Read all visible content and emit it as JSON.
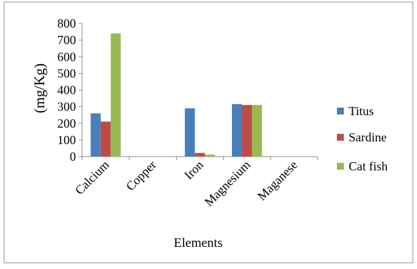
{
  "chart_data": {
    "type": "bar",
    "categories": [
      "Calcium",
      "Copper",
      "Iron",
      "Magnesium",
      "Maganese"
    ],
    "series": [
      {
        "name": "Titus",
        "color": "#4a7ebb",
        "values": [
          260,
          0,
          290,
          315,
          0
        ]
      },
      {
        "name": "Sardine",
        "color": "#be4b48",
        "values": [
          210,
          0,
          22,
          310,
          0
        ]
      },
      {
        "name": "Cat fish",
        "color": "#98b954",
        "values": [
          740,
          0,
          12,
          310,
          0
        ]
      }
    ],
    "title": "",
    "xlabel": "Elements",
    "ylabel": "(mg/Kg)",
    "ylim": [
      0,
      800
    ],
    "yticks": [
      0,
      100,
      200,
      300,
      400,
      500,
      600,
      700,
      800
    ],
    "grid": false,
    "legend_position": "right"
  }
}
